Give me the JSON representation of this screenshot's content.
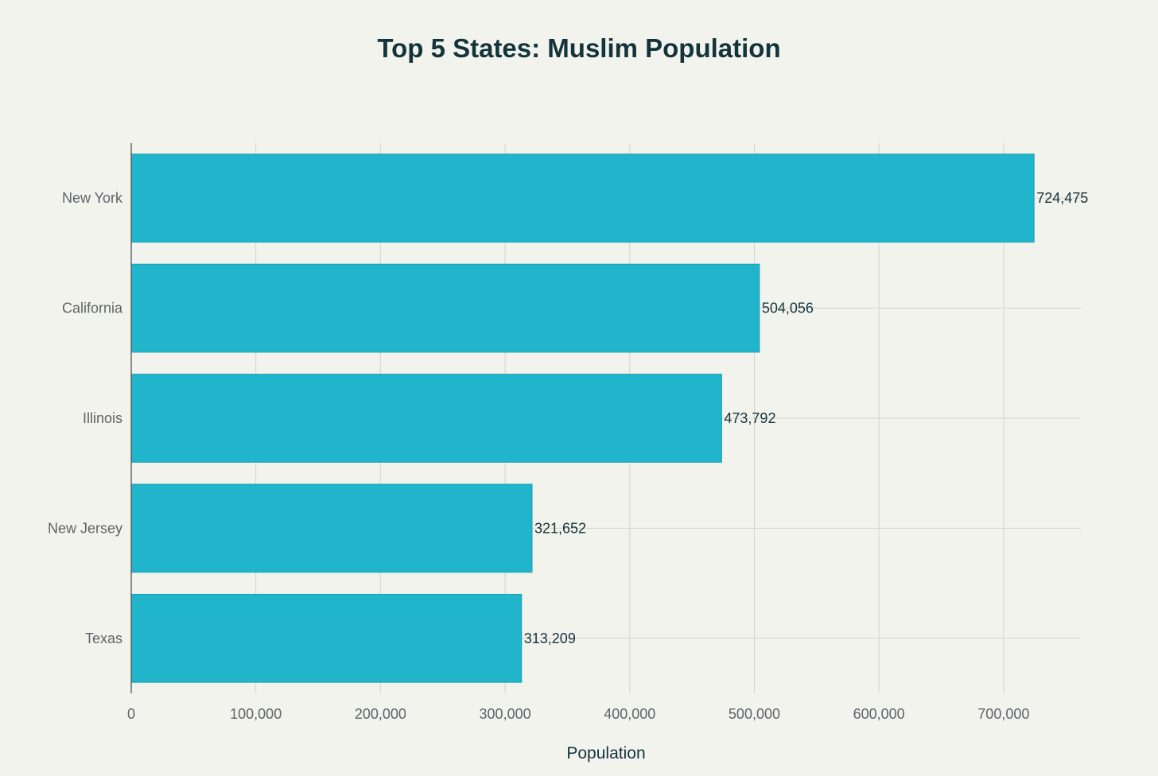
{
  "chart_data": {
    "type": "bar",
    "orientation": "horizontal",
    "title": "Top 5 States: Muslim Population",
    "xlabel": "Population",
    "ylabel": "",
    "categories": [
      "New York",
      "California",
      "Illinois",
      "New Jersey",
      "Texas"
    ],
    "values": [
      724475,
      504056,
      473792,
      321652,
      313209
    ],
    "data_labels": [
      "724,475",
      "504,056",
      "473,792",
      "321,652",
      "313,209"
    ],
    "xlim": [
      0,
      762000
    ],
    "x_ticks": [
      0,
      100000,
      200000,
      300000,
      400000,
      500000,
      600000,
      700000
    ],
    "x_tick_labels": [
      "0",
      "100,000",
      "200,000",
      "300,000",
      "400,000",
      "500,000",
      "600,000",
      "700,000"
    ],
    "grid": true,
    "legend": "none",
    "colors": {
      "bar": "#21b5cb",
      "bar_border": "#1a9fb2",
      "background": "#f3f3ee",
      "grid": "#d4d4cf",
      "axis": "#555555",
      "title": "#13343b",
      "tick": "#5f6368"
    }
  }
}
